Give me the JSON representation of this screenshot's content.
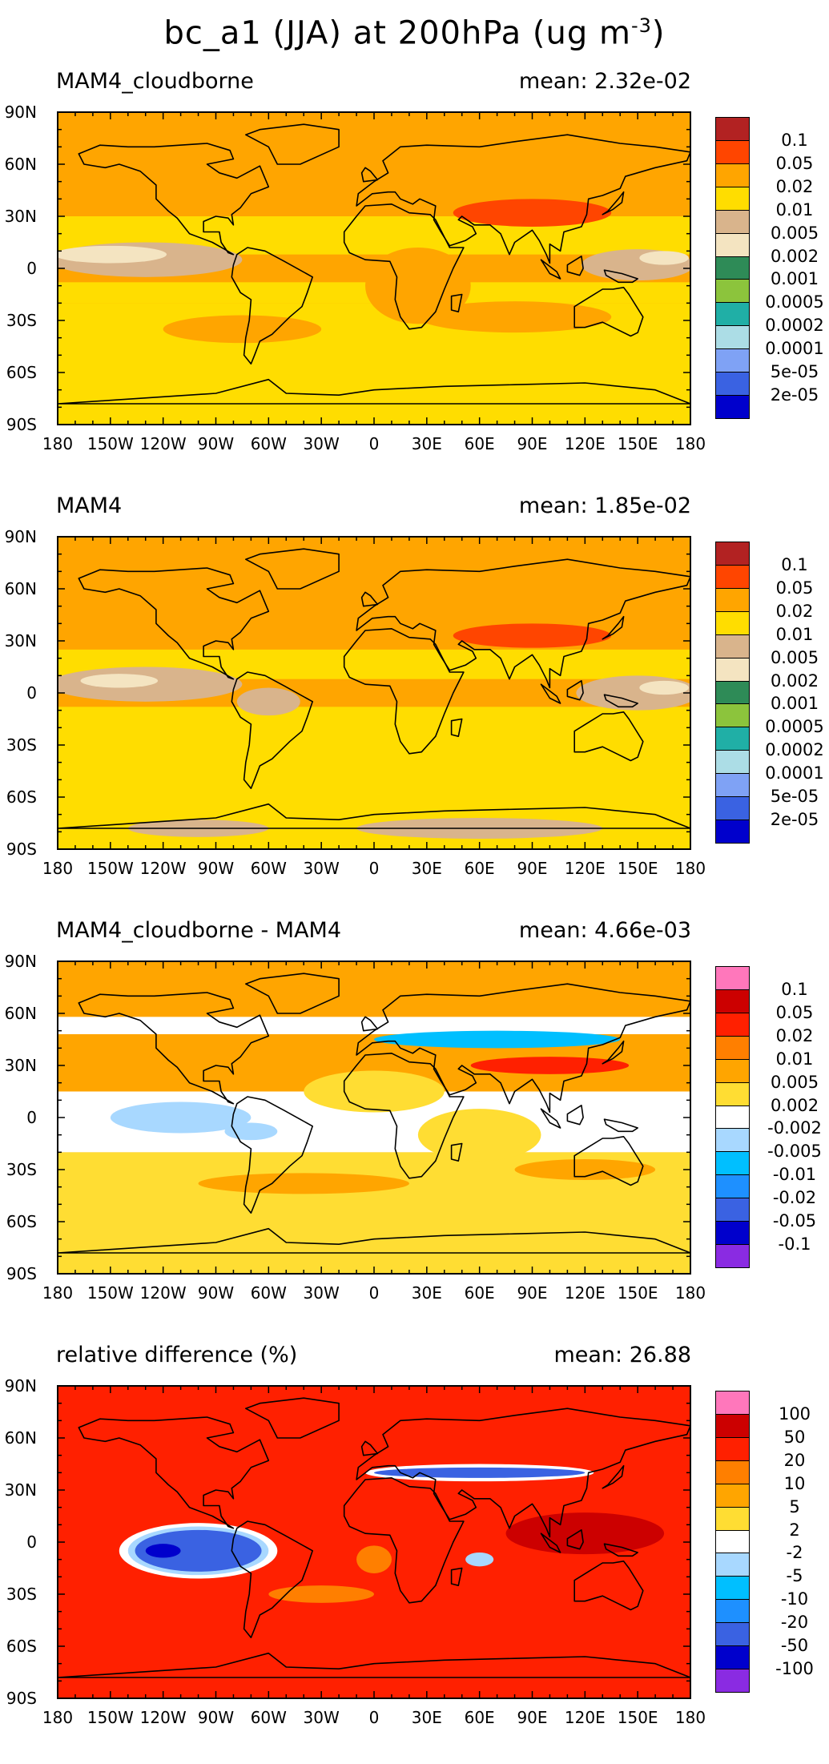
{
  "figure": {
    "title_prefix": "bc_a1 (JJA) at 200hPa (ug m",
    "title_sup": "-3",
    "title_suffix": ")"
  },
  "axes": {
    "y_labels": [
      "90N",
      "60N",
      "30N",
      "0",
      "30S",
      "60S",
      "90S"
    ],
    "x_labels": [
      "180",
      "150W",
      "120W",
      "90W",
      "60W",
      "30W",
      "0",
      "30E",
      "60E",
      "90E",
      "120E",
      "150E",
      "180"
    ]
  },
  "panels": [
    {
      "title": "MAM4_cloudborne",
      "mean": "mean: 2.32e-02",
      "palette": [
        "#0000CC",
        "#3A62E2",
        "#7FA2F5",
        "#ACDDE6",
        "#20AFA6",
        "#8CC43C",
        "#2E8B57",
        "#F4E4C1",
        "#D9B48C",
        "#FFDD00",
        "#FFA500",
        "#FF4500",
        "#B22222"
      ],
      "levels": [
        "2e-05",
        "5e-05",
        "0.0001",
        "0.0002",
        "0.0005",
        "0.001",
        "0.002",
        "0.005",
        "0.01",
        "0.02",
        "0.05",
        "0.1"
      ],
      "base_color": "#FFA500",
      "bands": [
        {
          "lat": [
            -90,
            -20
          ],
          "color": "#FFDD00"
        },
        {
          "lat": [
            -20,
            -8
          ],
          "color": "#FFDD00"
        },
        {
          "lat": [
            8,
            30
          ],
          "color": "#FFDD00"
        }
      ],
      "blobs": [
        {
          "lon": -130,
          "lat": 5,
          "rx": 55,
          "ry": 10,
          "color": "#D9B48C"
        },
        {
          "lon": -150,
          "lat": 8,
          "rx": 32,
          "ry": 5,
          "color": "#F4E4C1"
        },
        {
          "lon": 150,
          "lat": 2,
          "rx": 32,
          "ry": 9,
          "color": "#D9B48C"
        },
        {
          "lon": 165,
          "lat": 6,
          "rx": 14,
          "ry": 4,
          "color": "#F4E4C1"
        },
        {
          "lon": 90,
          "lat": 32,
          "rx": 45,
          "ry": 8,
          "color": "#FF4500"
        },
        {
          "lon": -75,
          "lat": -35,
          "rx": 45,
          "ry": 8,
          "color": "#FFA500"
        },
        {
          "lon": 80,
          "lat": -28,
          "rx": 55,
          "ry": 9,
          "color": "#FFA500"
        },
        {
          "lon": 25,
          "lat": -10,
          "rx": 30,
          "ry": 22,
          "color": "#FFA500"
        }
      ]
    },
    {
      "title": "MAM4",
      "mean": "mean: 1.85e-02",
      "palette": [
        "#0000CC",
        "#3A62E2",
        "#7FA2F5",
        "#ACDDE6",
        "#20AFA6",
        "#8CC43C",
        "#2E8B57",
        "#F4E4C1",
        "#D9B48C",
        "#FFDD00",
        "#FFA500",
        "#FF4500",
        "#B22222"
      ],
      "levels": [
        "2e-05",
        "5e-05",
        "0.0001",
        "0.0002",
        "0.0005",
        "0.001",
        "0.002",
        "0.005",
        "0.01",
        "0.02",
        "0.05",
        "0.1"
      ],
      "base_color": "#FFA500",
      "bands": [
        {
          "lat": [
            -90,
            -8
          ],
          "color": "#FFDD00"
        },
        {
          "lat": [
            8,
            25
          ],
          "color": "#FFDD00"
        }
      ],
      "blobs": [
        {
          "lon": -130,
          "lat": 5,
          "rx": 55,
          "ry": 10,
          "color": "#D9B48C"
        },
        {
          "lon": -145,
          "lat": 7,
          "rx": 22,
          "ry": 4,
          "color": "#F4E4C1"
        },
        {
          "lon": -60,
          "lat": -5,
          "rx": 18,
          "ry": 8,
          "color": "#D9B48C"
        },
        {
          "lon": 150,
          "lat": 0,
          "rx": 35,
          "ry": 10,
          "color": "#D9B48C"
        },
        {
          "lon": 165,
          "lat": 3,
          "rx": 14,
          "ry": 4,
          "color": "#F4E4C1"
        },
        {
          "lon": 90,
          "lat": 33,
          "rx": 45,
          "ry": 7,
          "color": "#FF4500"
        },
        {
          "lon": -100,
          "lat": -78,
          "rx": 40,
          "ry": 5,
          "color": "#D9B48C"
        },
        {
          "lon": 60,
          "lat": -78,
          "rx": 70,
          "ry": 6,
          "color": "#D9B48C"
        }
      ]
    },
    {
      "title": "MAM4_cloudborne - MAM4",
      "mean": "mean: 4.66e-03",
      "palette": [
        "#8A2BE2",
        "#0000CC",
        "#3A62E2",
        "#1E90FF",
        "#00BFFF",
        "#A8D8FF",
        "#FFFFFF",
        "#FFDD33",
        "#FFA500",
        "#FF7F00",
        "#FF2000",
        "#CC0000",
        "#FF77BB"
      ],
      "levels": [
        "-0.1",
        "-0.05",
        "-0.02",
        "-0.01",
        "-0.005",
        "-0.002",
        "0.002",
        "0.005",
        "0.01",
        "0.02",
        "0.05",
        "0.1"
      ],
      "base_color": "#FFA500",
      "bands": [
        {
          "lat": [
            -90,
            -20
          ],
          "color": "#FFDD33"
        },
        {
          "lat": [
            -20,
            15
          ],
          "color": "#FFFFFF"
        },
        {
          "lat": [
            15,
            35
          ],
          "color": "#FFA500"
        },
        {
          "lat": [
            48,
            58
          ],
          "color": "#FFFFFF"
        }
      ],
      "blobs": [
        {
          "lon": -110,
          "lat": 0,
          "rx": 40,
          "ry": 9,
          "color": "#A8D8FF"
        },
        {
          "lon": -70,
          "lat": -8,
          "rx": 15,
          "ry": 5,
          "color": "#A8D8FF"
        },
        {
          "lon": 70,
          "lat": 45,
          "rx": 70,
          "ry": 5,
          "color": "#00BFFF"
        },
        {
          "lon": 100,
          "lat": 30,
          "rx": 45,
          "ry": 5,
          "color": "#FF2000"
        },
        {
          "lon": 0,
          "lat": 15,
          "rx": 40,
          "ry": 12,
          "color": "#FFDD33"
        },
        {
          "lon": 60,
          "lat": -10,
          "rx": 35,
          "ry": 15,
          "color": "#FFDD33"
        },
        {
          "lon": -40,
          "lat": -38,
          "rx": 60,
          "ry": 6,
          "color": "#FFA500"
        },
        {
          "lon": 120,
          "lat": -30,
          "rx": 40,
          "ry": 6,
          "color": "#FFA500"
        }
      ]
    },
    {
      "title": "relative difference (%)",
      "mean": "mean: 26.88",
      "palette": [
        "#8A2BE2",
        "#0000CC",
        "#3A62E2",
        "#1E90FF",
        "#00BFFF",
        "#A8D8FF",
        "#FFFFFF",
        "#FFDD33",
        "#FFA500",
        "#FF7F00",
        "#FF2000",
        "#CC0000",
        "#FF77BB"
      ],
      "levels": [
        "-100",
        "-50",
        "-20",
        "-10",
        "-5",
        "-2",
        "2",
        "5",
        "10",
        "20",
        "50",
        "100"
      ],
      "base_color": "#FF2000",
      "bands": [],
      "blobs": [
        {
          "lon": -100,
          "lat": -5,
          "rx": 45,
          "ry": 16,
          "color": "#FFFFFF"
        },
        {
          "lon": -100,
          "lat": -5,
          "rx": 40,
          "ry": 14,
          "color": "#A8D8FF"
        },
        {
          "lon": -100,
          "lat": -5,
          "rx": 36,
          "ry": 12,
          "color": "#3A62E2"
        },
        {
          "lon": -120,
          "lat": -5,
          "rx": 10,
          "ry": 4,
          "color": "#0000CC"
        },
        {
          "lon": 60,
          "lat": 40,
          "rx": 65,
          "ry": 5,
          "color": "#FFFFFF"
        },
        {
          "lon": 60,
          "lat": 40,
          "rx": 60,
          "ry": 3,
          "color": "#3A62E2"
        },
        {
          "lon": 120,
          "lat": 5,
          "rx": 45,
          "ry": 12,
          "color": "#CC0000"
        },
        {
          "lon": 60,
          "lat": -10,
          "rx": 8,
          "ry": 4,
          "color": "#A8D8FF"
        },
        {
          "lon": 0,
          "lat": -10,
          "rx": 10,
          "ry": 8,
          "color": "#FF7F00"
        },
        {
          "lon": -30,
          "lat": -30,
          "rx": 30,
          "ry": 5,
          "color": "#FF7F00"
        }
      ]
    }
  ]
}
